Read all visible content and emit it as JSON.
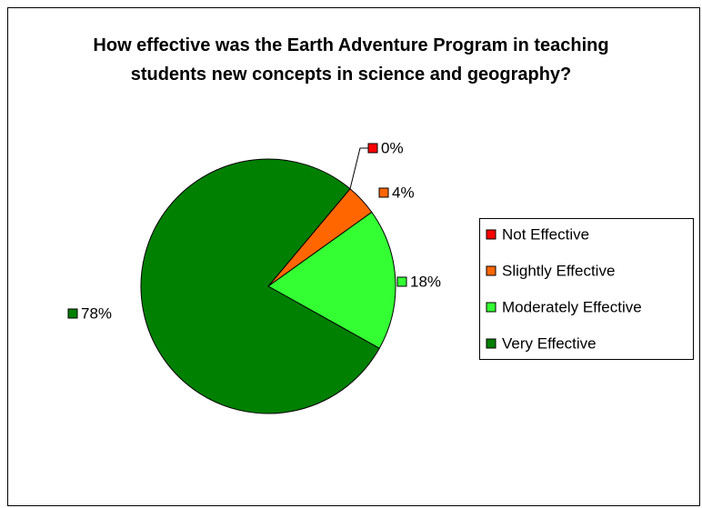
{
  "chart_data": {
    "type": "pie",
    "title": "How effective was the Earth Adventure Program in teaching students new concepts in science and geography?",
    "categories": [
      "Not Effective",
      "Slightly Effective",
      "Moderately Effective",
      "Very Effective"
    ],
    "values": [
      0,
      4,
      18,
      78
    ],
    "value_labels": [
      "0%",
      "4%",
      "18%",
      "78%"
    ],
    "colors": [
      "#ff0000",
      "#ff6600",
      "#33ff33",
      "#008000"
    ],
    "legend": "right"
  }
}
